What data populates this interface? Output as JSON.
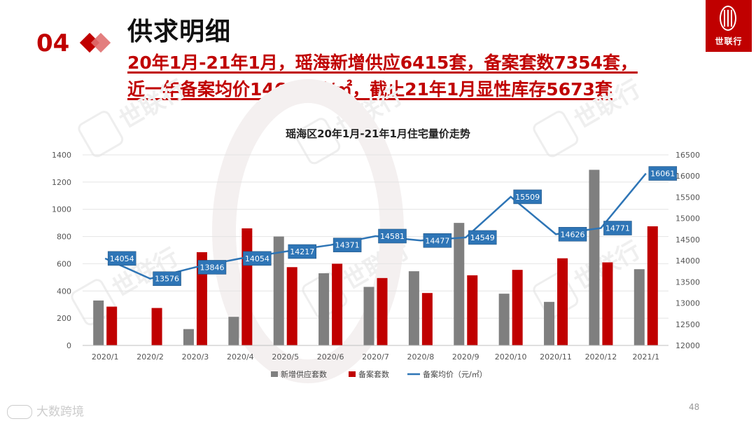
{
  "header": {
    "section_number": "04",
    "title": "供求明细",
    "subtitle_line1": "20年1月-21年1月，瑶海新增供应6415套，备案套数7354套，",
    "subtitle_line2": "近一年备案均价14621元/㎡，截止21年1月显性库存5673套"
  },
  "logo": {
    "text": "世联行"
  },
  "watermark": {
    "text": "世联行",
    "corner_text": "大数跨境"
  },
  "page_number": "48",
  "colors": {
    "accent": "#c00000",
    "supply_bar": "#7f7f7f",
    "record_bar": "#c00000",
    "price_line": "#2e75b6",
    "label_box": "#2e75b6"
  },
  "chart_data": {
    "type": "bar",
    "title": "瑶海区20年1月-21年1月住宅量价走势",
    "categories": [
      "2020/1",
      "2020/2",
      "2020/3",
      "2020/4",
      "2020/5",
      "2020/6",
      "2020/7",
      "2020/8",
      "2020/9",
      "2020/10",
      "2020/11",
      "2020/12",
      "2021/1"
    ],
    "series": [
      {
        "name": "新增供应套数",
        "kind": "bar",
        "axis": "left",
        "values": [
          330,
          0,
          120,
          210,
          800,
          530,
          430,
          545,
          900,
          380,
          320,
          1290,
          560
        ]
      },
      {
        "name": "备案套数",
        "kind": "bar",
        "axis": "left",
        "values": [
          285,
          275,
          685,
          860,
          575,
          600,
          495,
          385,
          515,
          555,
          640,
          610,
          875
        ]
      },
      {
        "name": "备案均价（元/㎡）",
        "kind": "line",
        "axis": "right",
        "values": [
          14054,
          13576,
          13846,
          14054,
          14217,
          14371,
          14581,
          14477,
          14549,
          15509,
          14626,
          14771,
          16061
        ]
      }
    ],
    "ylim_left": [
      0,
      1400
    ],
    "yticks_left": [
      "0",
      "200",
      "400",
      "600",
      "800",
      "1000",
      "1200",
      "1400"
    ],
    "ylim_right": [
      12000,
      16500
    ],
    "yticks_right": [
      "12000",
      "12500",
      "13000",
      "13500",
      "14000",
      "14500",
      "15000",
      "15500",
      "16000",
      "16500"
    ],
    "legend_position": "bottom",
    "grid": true
  }
}
